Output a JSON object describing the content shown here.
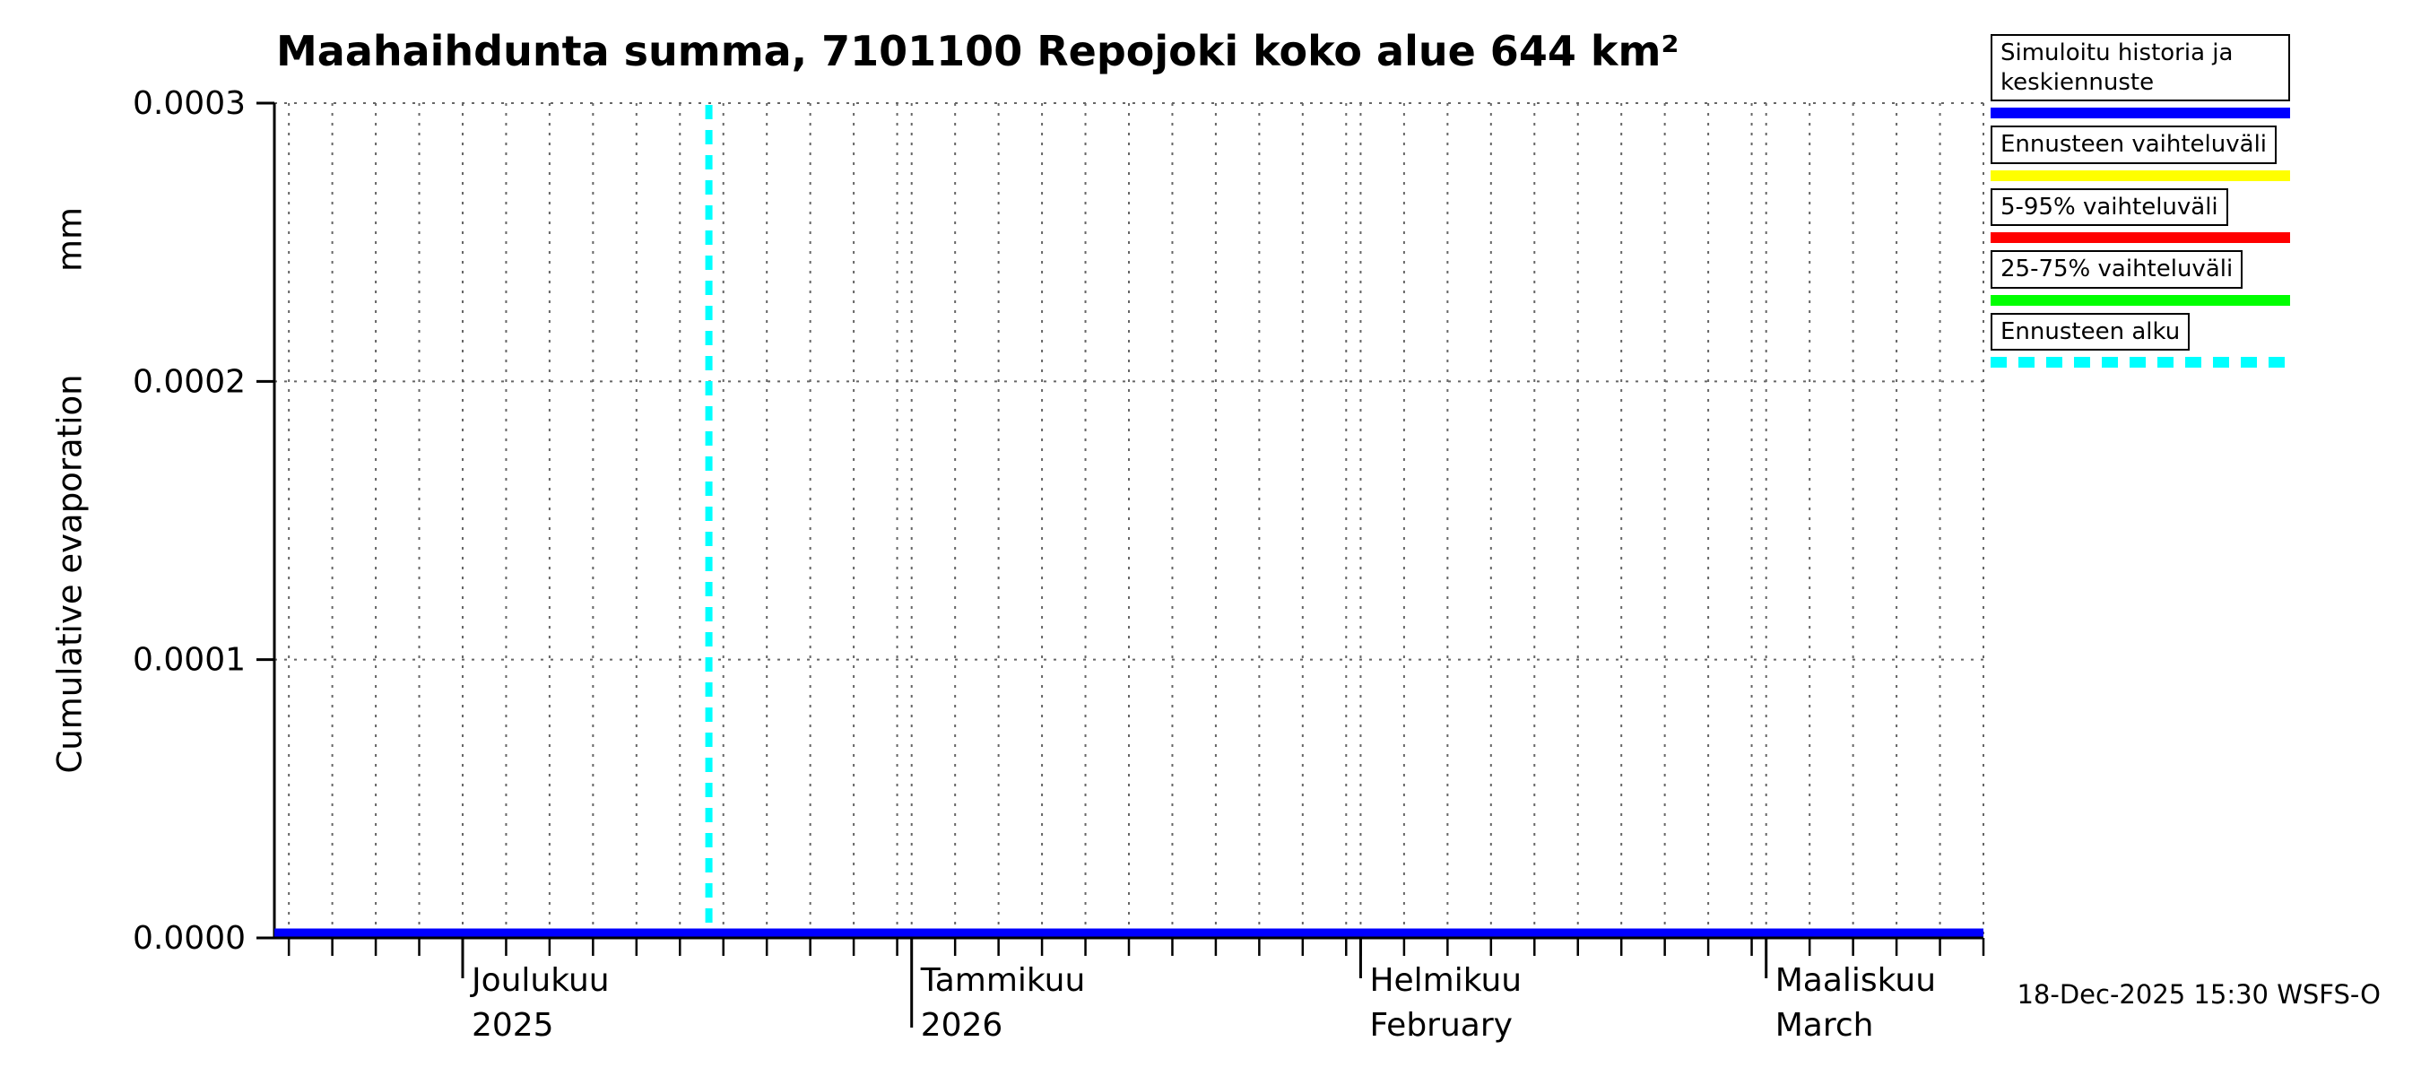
{
  "chart_data": {
    "type": "line",
    "title": "Maahaihdunta summa, 7101100 Repojoki koko alue 644 km²",
    "ylabel": "Cumulative evaporation",
    "ylabel_unit": "mm",
    "ylim": [
      0,
      0.0003
    ],
    "ytick_labels": [
      "0.0000",
      "0.0001",
      "0.0002",
      "0.0003"
    ],
    "grid": true,
    "x_axis": {
      "range_days": 118,
      "grid_step_days": 3,
      "months": [
        {
          "name": "Joulukuu",
          "sub": "2025",
          "start_day": 13
        },
        {
          "name": "Tammikuu",
          "sub": "2026",
          "start_day": 44,
          "year_boundary": true
        },
        {
          "name": "Helmikuu",
          "sub": "February",
          "start_day": 75
        },
        {
          "name": "Maaliskuu",
          "sub": "March",
          "start_day": 103
        }
      ]
    },
    "series": [
      {
        "name": "Simuloitu historia ja keskiennuste",
        "kind": "hline",
        "color": "#0000ff",
        "value": 0.0,
        "from_day": 0,
        "to_day": 118
      },
      {
        "name": "Ennusteen alku",
        "kind": "vline",
        "color": "#00ffff",
        "style": "dashed",
        "day": 30
      }
    ]
  },
  "legend": {
    "items": [
      {
        "label": "Simuloitu historia ja keskiennuste",
        "color": "#0000ff",
        "style": "solid"
      },
      {
        "label": "Ennusteen vaihteluväli",
        "color": "#ffff00",
        "style": "solid"
      },
      {
        "label": "5-95% vaihteluväli",
        "color": "#ff0000",
        "style": "solid"
      },
      {
        "label": "25-75% vaihteluväli",
        "color": "#00ff00",
        "style": "solid"
      },
      {
        "label": "Ennusteen alku",
        "color": "#00ffff",
        "style": "dashed"
      }
    ]
  },
  "footer": {
    "timestamp": "18-Dec-2025 15:30 WSFS-O"
  }
}
